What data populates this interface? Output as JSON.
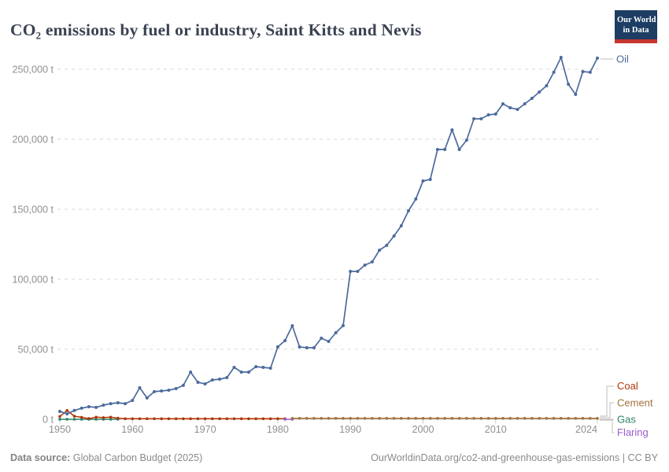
{
  "header": {
    "title": "CO₂ emissions by fuel or industry, Saint Kitts and Nevis",
    "logo_line1": "Our World",
    "logo_line2": "in Data"
  },
  "footer": {
    "source_label": "Data source:",
    "source_value": " Global Carbon Budget (2025)",
    "credit": "OurWorldinData.org/co2-and-greenhouse-gas-emissions | CC BY"
  },
  "colors": {
    "oil": "#4C6A9C",
    "coal": "#B13507",
    "cement": "#A1713B",
    "gas": "#2C8465",
    "flaring": "#9A5CC9",
    "grid": "#dadada",
    "zero_line": "#cccccc",
    "axis_text": "#909090",
    "connector": "#bdbdbd",
    "title_text": "#3A4252",
    "logo_bg": "#1D3D63",
    "logo_bar": "#C5352E"
  },
  "chart_data": {
    "type": "line",
    "title": "CO₂ emissions by fuel or industry, Saint Kitts and Nevis",
    "unit": "t",
    "xlabel": "",
    "ylabel": "",
    "x_range": [
      1950,
      2024
    ],
    "ylim": [
      0,
      250000
    ],
    "grid": "dashed-horizontal",
    "legend_position": "right-edge-labels",
    "xticks": [
      1950,
      1960,
      1970,
      1980,
      1990,
      2000,
      2010,
      2024
    ],
    "yticks": [
      {
        "v": 0,
        "label": "0 t"
      },
      {
        "v": 50000,
        "label": "50,000 t"
      },
      {
        "v": 100000,
        "label": "100,000 t"
      },
      {
        "v": 150000,
        "label": "150,000 t"
      },
      {
        "v": 200000,
        "label": "200,000 t"
      },
      {
        "v": 250000,
        "label": "250,000 t"
      }
    ],
    "series": [
      {
        "name": "Oil",
        "color_key": "oil",
        "start_year": 1950,
        "values": [
          5600,
          3900,
          6300,
          7900,
          9000,
          8500,
          10100,
          11200,
          11800,
          11200,
          13500,
          22500,
          15200,
          19700,
          20200,
          20800,
          21900,
          24200,
          33700,
          26400,
          25300,
          28100,
          28650,
          29800,
          37100,
          33700,
          33700,
          37600,
          37100,
          36500,
          51700,
          56200,
          66800,
          51700,
          51100,
          51100,
          57900,
          55600,
          61800,
          66900,
          105600,
          105600,
          110100,
          112400,
          120800,
          124200,
          130900,
          138200,
          148900,
          157300,
          170200,
          171300,
          192700,
          192700,
          206700,
          192700,
          199400,
          214600,
          214600,
          217400,
          218000,
          225300,
          222500,
          221300,
          225300,
          229200,
          233700,
          238200,
          247800,
          258400,
          239300,
          232000,
          248300,
          247800,
          257900
        ]
      },
      {
        "name": "Coal",
        "color_key": "coal",
        "start_year": 1950,
        "values": [
          2000,
          6300,
          2200,
          1400,
          500,
          1500,
          1200,
          1500,
          800,
          400,
          400,
          400,
          400,
          400,
          400,
          400,
          400,
          400,
          400,
          400,
          400,
          400,
          400,
          400,
          400,
          400,
          400,
          400,
          400,
          400,
          400,
          400
        ]
      },
      {
        "name": "Cement",
        "color_key": "cement",
        "start_year": 1982,
        "values": [
          700,
          700,
          700,
          700,
          700,
          700,
          700,
          700,
          700,
          700,
          700,
          700,
          700,
          700,
          700,
          700,
          700,
          700,
          700,
          700,
          700,
          700,
          700,
          700,
          700,
          700,
          700,
          700,
          700,
          700,
          700,
          700,
          700,
          700,
          700,
          700,
          700,
          700,
          700,
          700,
          700,
          700,
          700
        ]
      },
      {
        "name": "Gas",
        "color_key": "gas",
        "start_year": 1950,
        "values": [
          0,
          0,
          0,
          0,
          0,
          0,
          0,
          0,
          0
        ]
      },
      {
        "name": "Flaring",
        "color_key": "flaring",
        "start_year": 1981,
        "values": [
          0,
          0
        ]
      }
    ]
  }
}
